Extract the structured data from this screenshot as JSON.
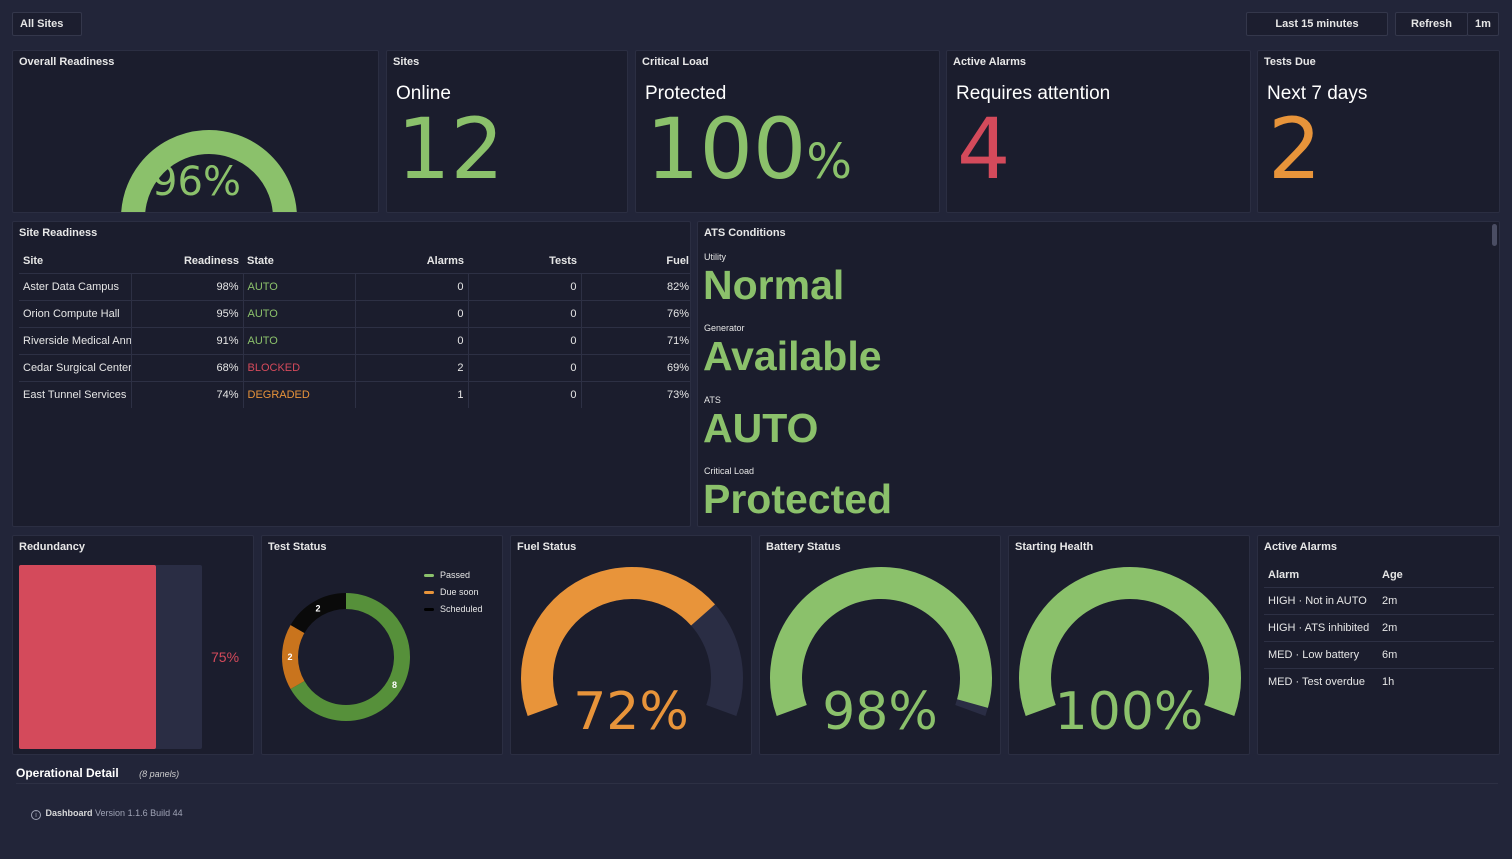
{
  "topbar": {
    "site_filter": "All Sites",
    "time_range": "Last 15 minutes",
    "refresh": "Refresh",
    "interval": "1m"
  },
  "colors": {
    "green": "#8bc16b",
    "red": "#d44a5b",
    "orange": "#e8943a",
    "track": "#2a2d44"
  },
  "overall": {
    "title": "Overall Readiness",
    "value_text": "96%",
    "value": 96
  },
  "sites": {
    "title": "Sites",
    "sub": "Online",
    "value": "12"
  },
  "critical": {
    "title": "Critical Load",
    "sub": "Protected",
    "value": "100",
    "unit": "%"
  },
  "alarms_stat": {
    "title": "Active Alarms",
    "sub": "Requires attention",
    "value": "4"
  },
  "tests_due": {
    "title": "Tests Due",
    "sub": "Next 7 days",
    "value": "2"
  },
  "site_readiness": {
    "title": "Site Readiness",
    "headers": [
      "Site",
      "Readiness",
      "State",
      "Alarms",
      "Tests",
      "Fuel"
    ],
    "rows": [
      {
        "site": "Aster Data Campus",
        "readiness": "98%",
        "state": "AUTO",
        "state_color": "#8bc16b",
        "alarms": "0",
        "tests": "0",
        "fuel": "82%"
      },
      {
        "site": "Orion Compute Hall",
        "readiness": "95%",
        "state": "AUTO",
        "state_color": "#8bc16b",
        "alarms": "0",
        "tests": "0",
        "fuel": "76%"
      },
      {
        "site": "Riverside Medical Annex",
        "readiness": "91%",
        "state": "AUTO",
        "state_color": "#8bc16b",
        "alarms": "0",
        "tests": "0",
        "fuel": "71%"
      },
      {
        "site": "Cedar Surgical Center",
        "readiness": "68%",
        "state": "BLOCKED",
        "state_color": "#d44a5b",
        "alarms": "2",
        "tests": "0",
        "fuel": "69%"
      },
      {
        "site": "East Tunnel Services",
        "readiness": "74%",
        "state": "DEGRADED",
        "state_color": "#e8943a",
        "alarms": "1",
        "tests": "0",
        "fuel": "73%"
      }
    ]
  },
  "ats": {
    "title": "ATS Conditions",
    "items": [
      {
        "label": "Utility",
        "value": "Normal"
      },
      {
        "label": "Generator",
        "value": "Available"
      },
      {
        "label": "ATS",
        "value": "AUTO"
      },
      {
        "label": "Critical Load",
        "value": "Protected"
      }
    ]
  },
  "redundancy": {
    "title": "Redundancy",
    "value_text": "75%",
    "value": 75
  },
  "test_status": {
    "title": "Test Status",
    "legend": [
      "Passed",
      "Due soon",
      "Scheduled"
    ],
    "labels": [
      "8",
      "2",
      "2"
    ]
  },
  "fuel": {
    "title": "Fuel Status",
    "value_text": "72%",
    "value": 72
  },
  "battery": {
    "title": "Battery Status",
    "value_text": "98%",
    "value": 98
  },
  "starting": {
    "title": "Starting Health",
    "value_text": "100%",
    "value": 100
  },
  "active_alarms": {
    "title": "Active Alarms",
    "headers": [
      "Alarm",
      "Age"
    ],
    "rows": [
      {
        "alarm": "HIGH · Not in AUTO",
        "age": "2m"
      },
      {
        "alarm": "HIGH · ATS inhibited",
        "age": "2m"
      },
      {
        "alarm": "MED · Low battery",
        "age": "6m"
      },
      {
        "alarm": "MED · Test overdue",
        "age": "1h"
      }
    ]
  },
  "row": {
    "title": "Operational Detail",
    "count": "(8 panels)"
  },
  "footer": {
    "info_icon": "info-icon",
    "brand": "Dashboard",
    "version": "Version 1.1.6 Build 44"
  },
  "chart_data": [
    {
      "type": "gauge",
      "title": "Overall Readiness",
      "value": 96,
      "max": 100
    },
    {
      "type": "pie",
      "title": "Test Status",
      "categories": [
        "Passed",
        "Due soon",
        "Scheduled"
      ],
      "values": [
        8,
        2,
        2
      ],
      "colors": [
        "#56903a",
        "#c9741d",
        "#0a0a0a"
      ]
    },
    {
      "type": "gauge",
      "title": "Fuel Status",
      "value": 72,
      "max": 100
    },
    {
      "type": "gauge",
      "title": "Battery Status",
      "value": 98,
      "max": 100
    },
    {
      "type": "gauge",
      "title": "Starting Health",
      "value": 100,
      "max": 100
    },
    {
      "type": "bar",
      "title": "Redundancy",
      "value": 75,
      "max": 100
    }
  ]
}
